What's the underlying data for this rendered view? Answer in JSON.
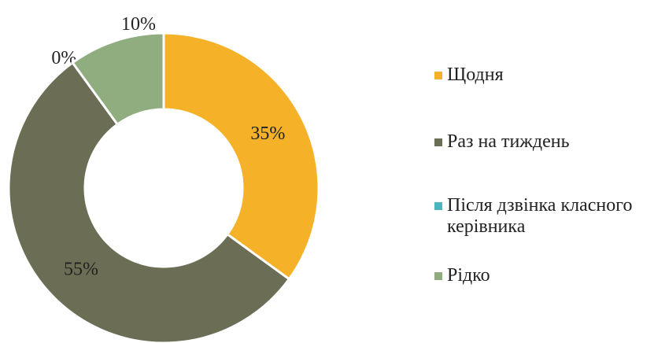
{
  "chart_data": {
    "type": "donut",
    "categories": [
      "Щодня",
      "Раз на тиждень",
      "Після дзвінка класного керівника",
      "Рідко"
    ],
    "values": [
      35,
      55,
      0,
      10
    ],
    "value_labels": [
      "35%",
      "55%",
      "0%",
      "10%"
    ],
    "colors": [
      "#f5b128",
      "#6b6e55",
      "#4bb6c0",
      "#90ad80"
    ],
    "legend": "right"
  }
}
